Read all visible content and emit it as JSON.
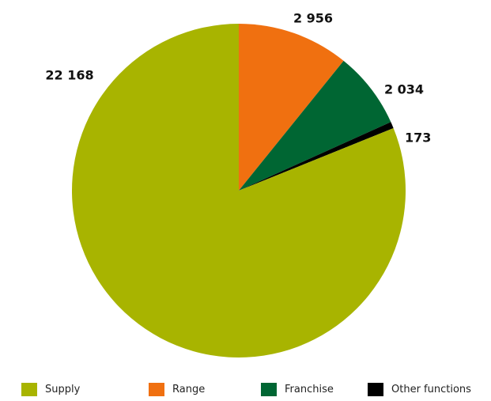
{
  "chart_data": {
    "type": "pie",
    "categories": [
      "Supply",
      "Range",
      "Franchise",
      "Other functions"
    ],
    "values": [
      22168,
      2956,
      2034,
      173
    ],
    "data_labels": [
      "22 168",
      "2 956",
      "2 034",
      "173"
    ],
    "colors": [
      "#a8b400",
      "#f07010",
      "#006633",
      "#000000"
    ],
    "start_angle": "12 o'clock",
    "direction": "clockwise",
    "legend_position": "bottom"
  }
}
